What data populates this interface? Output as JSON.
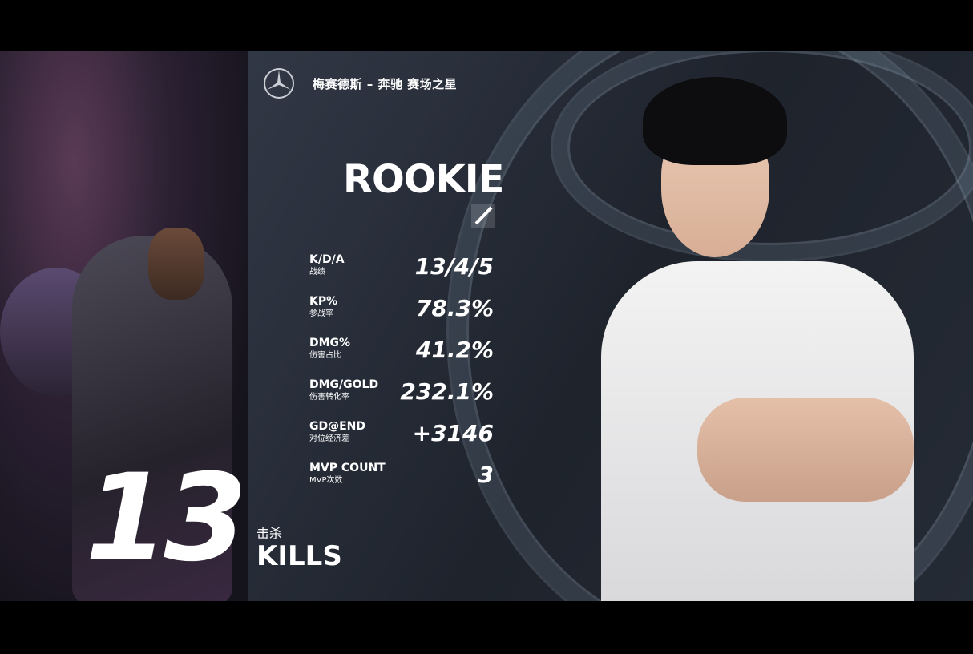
{
  "header": {
    "sponsor_title": "梅赛德斯 – 奔驰 赛场之星",
    "logo": "mercedes-benz-star"
  },
  "player": {
    "name": "ROOKIE",
    "role_icon": "mid-lane-icon"
  },
  "stats": [
    {
      "label": "K/D/A",
      "sub": "战绩",
      "value": "13/4/5"
    },
    {
      "label": "KP%",
      "sub": "参战率",
      "value": "78.3%"
    },
    {
      "label": "DMG%",
      "sub": "伤害占比",
      "value": "41.2%"
    },
    {
      "label": "DMG/GOLD",
      "sub": "伤害转化率",
      "value": "232.1%"
    },
    {
      "label": "GD@END",
      "sub": "对位经济差",
      "value": "+3146"
    },
    {
      "label": "MVP COUNT",
      "sub": "MVP次数",
      "value": "3"
    }
  ],
  "highlight": {
    "number": "13",
    "label_cn": "击杀",
    "label_en": "KILLS"
  }
}
